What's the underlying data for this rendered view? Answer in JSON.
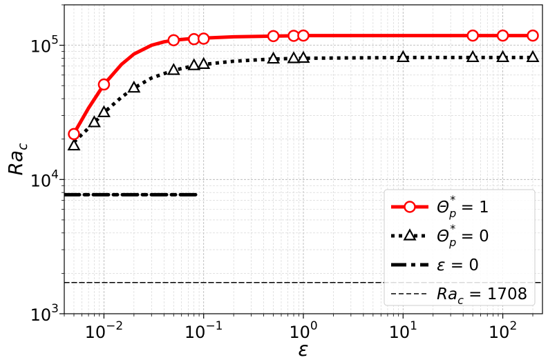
{
  "chart_data": {
    "type": "line",
    "xscale": "log",
    "yscale": "log",
    "xlim": [
      0.004,
      250
    ],
    "ylim": [
      1000,
      200000
    ],
    "grid": true,
    "xlabel": "ε",
    "ylabel": {
      "base": "Ra",
      "sub": "c"
    },
    "xticks": [
      {
        "value": 0.01,
        "base": "10",
        "exp": "−2"
      },
      {
        "value": 0.1,
        "base": "10",
        "exp": "−1"
      },
      {
        "value": 1,
        "base": "10",
        "exp": "0"
      },
      {
        "value": 10,
        "base": "10",
        "exp": "1"
      },
      {
        "value": 100,
        "base": "10",
        "exp": "2"
      }
    ],
    "yticks": [
      {
        "value": 1000,
        "base": "10",
        "exp": "3"
      },
      {
        "value": 10000,
        "base": "10",
        "exp": "4"
      },
      {
        "value": 100000,
        "base": "10",
        "exp": "5"
      }
    ],
    "series": [
      {
        "legend": {
          "sym": "Θ",
          "sub": "p",
          "sup": "*",
          "rest": " = 1"
        },
        "color": "#ff0000",
        "style": "solid",
        "marker": "circle",
        "x": [
          0.005,
          0.01,
          0.05,
          0.08,
          0.1,
          0.5,
          0.8,
          1,
          50,
          100,
          200
        ],
        "y": [
          21800,
          51000,
          109000,
          111000,
          112000,
          117000,
          117500,
          118000,
          118000,
          118000,
          118000
        ],
        "curve": {
          "x": [
            0.005,
            0.007,
            0.01,
            0.015,
            0.02,
            0.03,
            0.04,
            0.05,
            0.07,
            0.1,
            0.2,
            0.5,
            1,
            10,
            200
          ],
          "y": [
            22000,
            34000,
            51000,
            72000,
            86000,
            100000,
            106000,
            109000,
            111500,
            113000,
            115500,
            117000,
            118000,
            118000,
            118000
          ]
        }
      },
      {
        "legend": {
          "sym": "Θ",
          "sub": "p",
          "sup": "*",
          "rest": " = 0"
        },
        "color": "#000000",
        "style": "dotted",
        "marker": "triangle",
        "x": [
          0.005,
          0.008,
          0.01,
          0.02,
          0.05,
          0.08,
          0.1,
          0.5,
          0.8,
          1,
          10,
          50,
          100,
          200
        ],
        "y": [
          17800,
          26500,
          31500,
          48000,
          65000,
          70500,
          72000,
          79000,
          79500,
          80000,
          81000,
          81000,
          81000,
          81000
        ],
        "curve": {
          "x": [
            0.005,
            0.008,
            0.01,
            0.015,
            0.02,
            0.03,
            0.05,
            0.08,
            0.1,
            0.2,
            0.5,
            1,
            10,
            200
          ],
          "y": [
            19000,
            26500,
            31500,
            41000,
            48000,
            57000,
            65000,
            70500,
            72000,
            76000,
            79000,
            80000,
            81000,
            81000
          ]
        }
      },
      {
        "legend": {
          "sym": "ε",
          "rest": " = 0"
        },
        "color": "#000000",
        "style": "dashdot",
        "marker": "none",
        "x": [
          0.004,
          0.09
        ],
        "y": [
          7700,
          7700
        ]
      },
      {
        "legend": {
          "sym": "Ra",
          "sub": "c",
          "rest": " = 1708"
        },
        "color": "#000000",
        "style": "dashed",
        "marker": "none",
        "x": [
          0.004,
          250
        ],
        "y": [
          1708,
          1708
        ]
      }
    ],
    "legend_position": "lower-right"
  }
}
